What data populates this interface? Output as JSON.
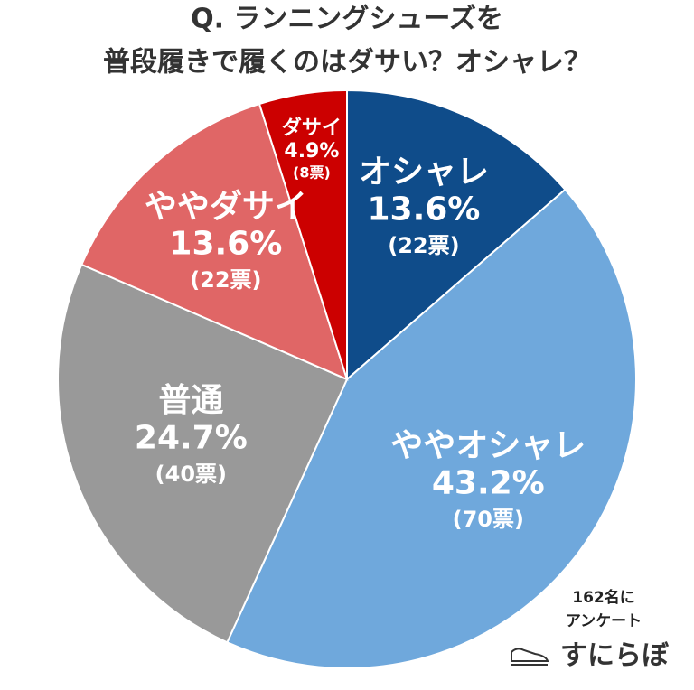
{
  "chart_data": {
    "type": "pie",
    "title_lines": [
      "Q. ランニングシューズを",
      "普段履きで履くのはダサい？オシャレ？"
    ],
    "categories": [
      "オシャレ",
      "ややオシャレ",
      "普通",
      "ややダサイ",
      "ダサイ"
    ],
    "values": [
      13.6,
      43.2,
      24.7,
      13.6,
      4.9
    ],
    "value_labels": [
      "13.6%",
      "43.2%",
      "24.7%",
      "13.6%",
      "4.9%"
    ],
    "count_labels": [
      "(22票)",
      "(70票)",
      "(40票)",
      "(22票)",
      "(8票)"
    ],
    "colors": [
      "#0f4c8a",
      "#6fa8dc",
      "#999999",
      "#e06666",
      "#cc0000"
    ],
    "note_lines": [
      "162名に",
      "アンケート"
    ],
    "brand": "すにらぼ"
  }
}
